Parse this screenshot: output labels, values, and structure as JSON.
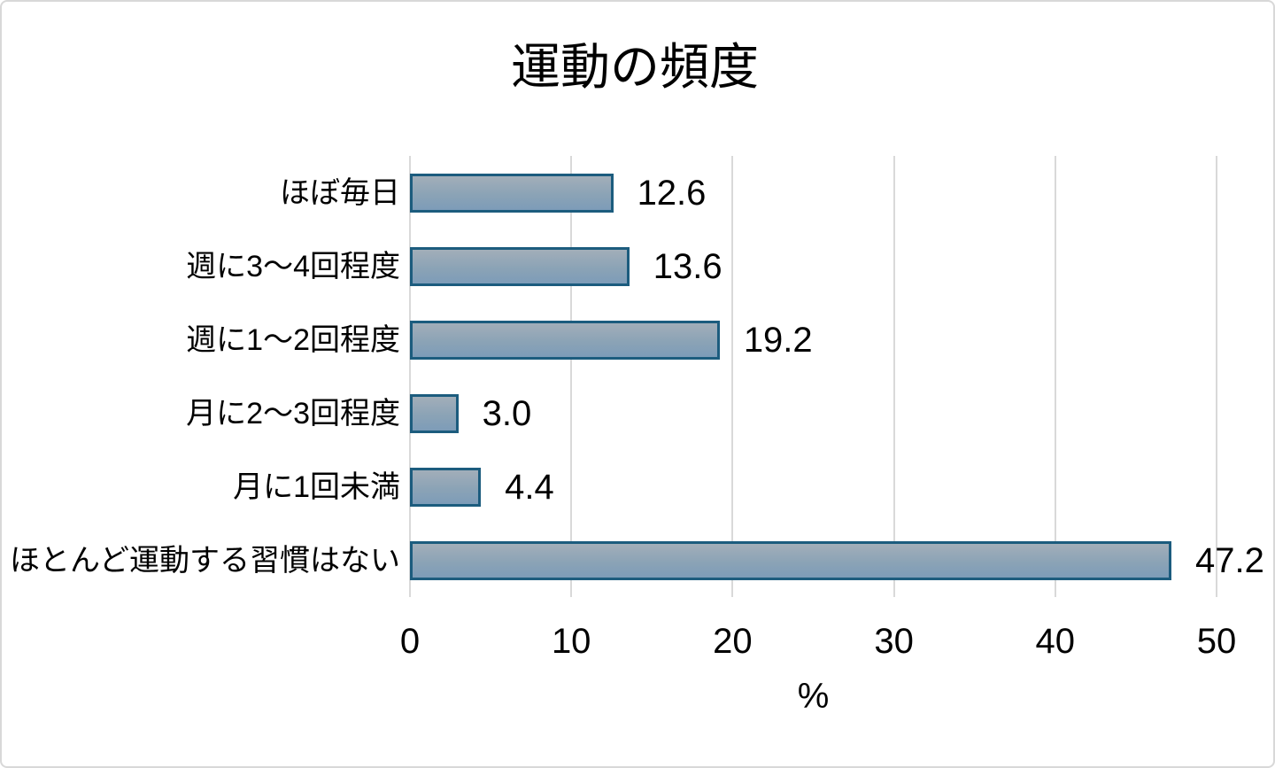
{
  "chart_data": {
    "type": "bar",
    "orientation": "horizontal",
    "title": "運動の頻度",
    "categories": [
      "ほぼ毎日",
      "週に3～4回程度",
      "週に1～2回程度",
      "月に2～3回程度",
      "月に1回未満",
      "ほとんど運動する習慣はない"
    ],
    "values": [
      12.6,
      13.6,
      19.2,
      3.0,
      4.4,
      47.2
    ],
    "value_labels": [
      "12.6",
      "13.6",
      "19.2",
      "3.0",
      "4.4",
      "47.2"
    ],
    "xlabel": "%",
    "xlim": [
      0,
      50
    ],
    "xticks": [
      0,
      10,
      20,
      30,
      40,
      50
    ],
    "xtick_labels": [
      "0",
      "10",
      "20",
      "30",
      "40",
      "50"
    ],
    "grid": "vertical",
    "legend": "none",
    "colors": {
      "bar_fill_top": "#a2aeb9",
      "bar_fill_mid": "#8ba3b6",
      "bar_fill_bottom": "#7d9cb8",
      "bar_border": "#1c5c7e",
      "gridline": "#d9d9d9",
      "text": "#000000",
      "frame_border": "#d8d8d8",
      "background": "#ffffff"
    }
  }
}
